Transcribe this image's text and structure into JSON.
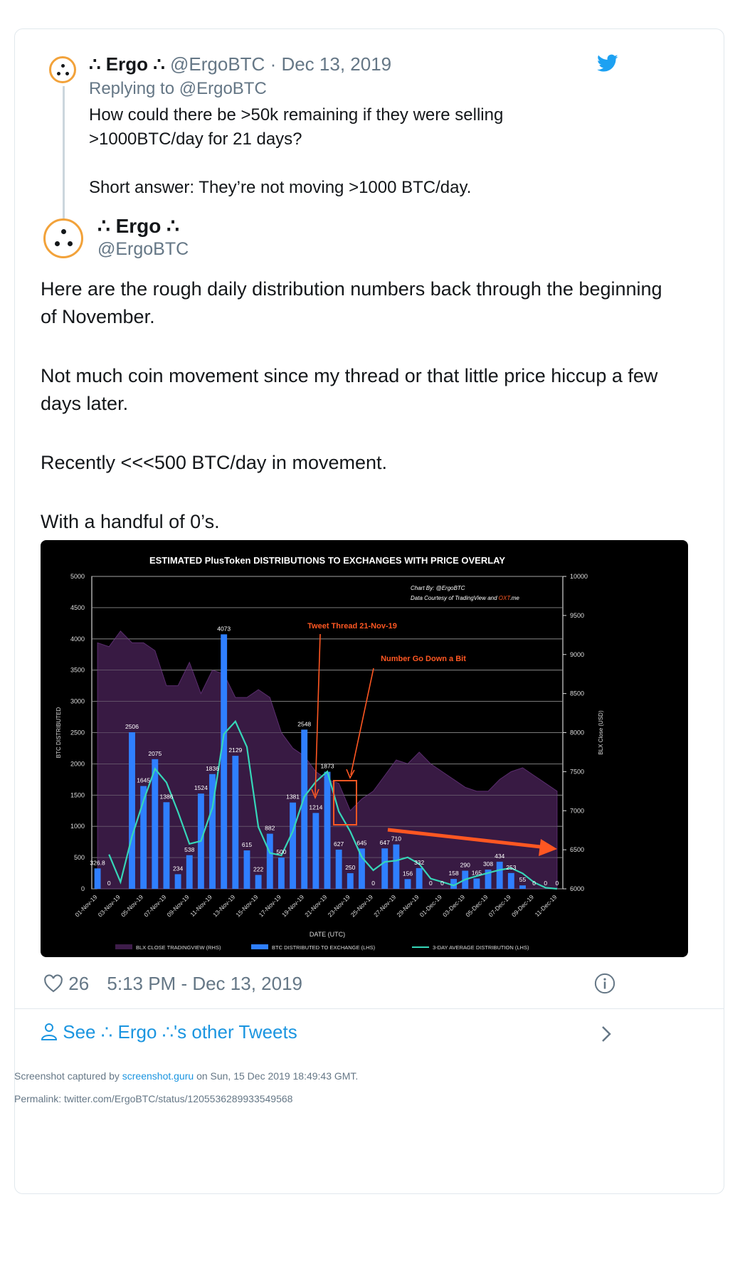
{
  "reply_tweet": {
    "display_name": "∴ Ergo ∴",
    "handle": "@ErgoBTC",
    "date": "· Dec 13, 2019",
    "replying_to": "Replying to @ErgoBTC",
    "text_line1": "How could there be >50k remaining if they were selling",
    "text_line2": ">1000BTC/day for 21 days?",
    "text_line3": "Short answer: They’re not moving >1000 BTC/day."
  },
  "main_tweet": {
    "display_name": "∴ Ergo ∴",
    "handle": "@ErgoBTC",
    "paragraphs": [
      "Here are the rough daily distribution numbers back through the beginning of November.",
      "Not much coin movement since my thread or that little price hiccup a few days later.",
      "Recently <<<500 BTC/day in movement.",
      "With a handful of 0’s."
    ],
    "likes": "26",
    "timestamp": "5:13 PM - Dec 13, 2019"
  },
  "see_other": "See ∴ Ergo ∴'s other Tweets",
  "capture": {
    "prefix": "Screenshot captured by",
    "site": "screenshot.guru",
    "suffix": "on Sun, 15 Dec 2019 18:49:43 GMT.",
    "permalink": "Permalink: twitter.com/ErgoBTC/status/1205536289933549568"
  },
  "colors": {
    "link": "#1b95e0",
    "bar": "#2f7fff",
    "area": "#3e1d4a",
    "line": "#36d6b8",
    "annotation": "#ff5722"
  },
  "chart_data": {
    "type": "bar",
    "title": "ESTIMATED PlusToken DISTRIBUTIONS TO EXCHANGES WITH PRICE OVERLAY",
    "credit_line1": "Chart By: @ErgoBTC",
    "credit_line2_prefix": "Data Courtesy of TradingView and ",
    "credit_line2_brand": "OXT",
    "credit_line2_suffix": ".me",
    "xlabel": "DATE (UTC)",
    "ylabel": "BTC DISTRIBUTED",
    "y2label": "BLX Close (USD)",
    "ylim": [
      0,
      5000
    ],
    "y2lim": [
      6000,
      10000
    ],
    "y_ticks": [
      "0",
      "500",
      "1000",
      "1500",
      "2000",
      "2500",
      "3000",
      "3500",
      "4000",
      "4500",
      "5000"
    ],
    "y2_ticks": [
      "6000",
      "6500",
      "7000",
      "7500",
      "8000",
      "8500",
      "9000",
      "9500",
      "10000"
    ],
    "x_tick_labels": [
      "01-Nov-19",
      "03-Nov-19",
      "05-Nov-19",
      "07-Nov-19",
      "09-Nov-19",
      "11-Nov-19",
      "13-Nov-19",
      "15-Nov-19",
      "17-Nov-19",
      "19-Nov-19",
      "21-Nov-19",
      "23-Nov-19",
      "25-Nov-19",
      "27-Nov-19",
      "29-Nov-19",
      "01-Dec-19",
      "03-Dec-19",
      "05-Dec-19",
      "07-Dec-19",
      "09-Dec-19",
      "11-Dec-19"
    ],
    "bar_values": [
      326.8,
      0,
      0,
      2506,
      1645,
      2075,
      1386,
      234,
      538,
      1524,
      1836,
      4073,
      2129,
      615,
      222,
      882,
      500,
      1381,
      2548,
      1214,
      1873,
      627,
      250,
      645,
      0,
      647,
      710,
      156,
      332,
      0,
      0,
      158,
      290,
      165,
      308,
      434,
      253,
      55,
      0,
      0,
      0
    ],
    "bar_labels": [
      "326.8",
      "0",
      "",
      "2506",
      "1645",
      "2075",
      "1386",
      "234",
      "538",
      "1524",
      "1836",
      "4073",
      "2129",
      "615",
      "222",
      "882",
      "500",
      "1381",
      "2548",
      "1214",
      "1873",
      "627",
      "250",
      "645",
      "0",
      "647",
      "710",
      "156",
      "332",
      "0",
      "0",
      "158",
      "290",
      "165",
      "308",
      "434",
      "253",
      "55",
      "0",
      "0",
      "0"
    ],
    "avg_values": [
      null,
      550,
      109,
      840,
      1409,
      1922,
      1702,
      1232,
      719,
      765,
      1299,
      2478,
      2679,
      2272,
      989,
      573,
      535,
      921,
      1476,
      1714,
      1878,
      1238,
      917,
      507,
      298,
      431,
      452,
      504,
      399,
      163,
      111,
      53,
      149,
      204,
      254,
      302,
      332,
      247,
      103,
      18,
      0
    ],
    "price_values": [
      9150,
      9100,
      9300,
      9150,
      9150,
      9050,
      8600,
      8600,
      8900,
      8500,
      8800,
      8750,
      8450,
      8450,
      8550,
      8450,
      8000,
      7800,
      7700,
      7500,
      7400,
      7350,
      7000,
      7150,
      7250,
      7450,
      7650,
      7600,
      7750,
      7600,
      7500,
      7400,
      7300,
      7250,
      7250,
      7400,
      7500,
      7550,
      7450,
      7350,
      7250
    ],
    "series": [
      {
        "name": "BLX CLOSE TRADINGVIEW (RHS)"
      },
      {
        "name": "BTC DISTRIBUTED TO EXCHANGE (LHS)"
      },
      {
        "name": "3-DAY AVERAGE DISTRIBUTION (LHS)"
      }
    ],
    "annotation1": "Tweet Thread 21-Nov-19",
    "annotation2": "Number Go Down a Bit"
  }
}
